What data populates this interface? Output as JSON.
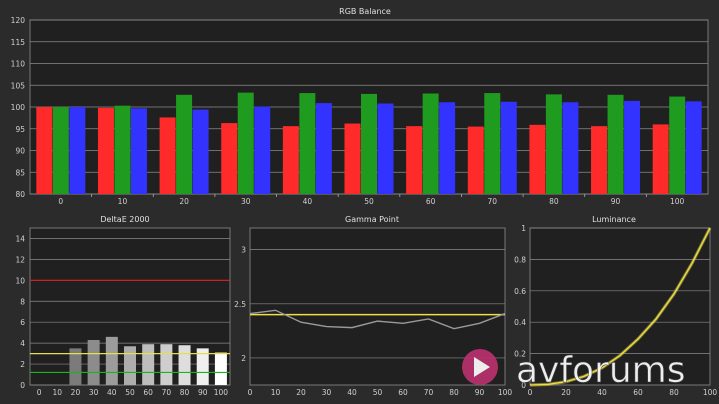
{
  "watermark": {
    "text": "avforums",
    "color": "#c1397a"
  },
  "chart_data": [
    {
      "id": "rgb",
      "type": "bar",
      "title": "RGB Balance",
      "xlabel": "",
      "ylabel": "",
      "ylim": [
        80,
        120
      ],
      "yticks": [
        80,
        85,
        90,
        95,
        100,
        105,
        110,
        115,
        120
      ],
      "categories": [
        "0",
        "10",
        "20",
        "30",
        "40",
        "50",
        "60",
        "70",
        "80",
        "90",
        "100"
      ],
      "series": [
        {
          "color": "#ff2b2b",
          "values": [
            100,
            99.8,
            97.6,
            96.3,
            95.6,
            96.2,
            95.6,
            95.5,
            95.9,
            95.6,
            96.0
          ]
        },
        {
          "color": "#1f9b1f",
          "values": [
            100,
            100.3,
            102.8,
            103.3,
            103.2,
            103.0,
            103.1,
            103.2,
            102.9,
            102.8,
            102.4
          ]
        },
        {
          "color": "#3333ff",
          "values": [
            100,
            99.7,
            99.4,
            100.1,
            100.9,
            100.8,
            101.1,
            101.2,
            101.1,
            101.4,
            101.3
          ]
        }
      ],
      "grid": true
    },
    {
      "id": "deltae",
      "type": "bar",
      "title": "DeltaE 2000",
      "xlabel": "",
      "ylabel": "",
      "ylim": [
        0,
        15
      ],
      "yticks": [
        0,
        2,
        4,
        6,
        8,
        10,
        12,
        14
      ],
      "categories": [
        "0",
        "10",
        "20",
        "30",
        "40",
        "50",
        "60",
        "70",
        "80",
        "90",
        "100"
      ],
      "values": [
        0,
        0,
        3.5,
        4.3,
        4.6,
        3.7,
        3.9,
        3.9,
        3.8,
        3.5,
        3.1
      ],
      "reference_lines": [
        {
          "value": 10,
          "color": "#e02020"
        },
        {
          "value": 3,
          "color": "#e8e040"
        },
        {
          "value": 1.2,
          "color": "#20b020"
        }
      ],
      "grid": true
    },
    {
      "id": "gamma",
      "type": "line",
      "title": "Gamma Point",
      "xlabel": "",
      "ylabel": "",
      "xlim": [
        0,
        100
      ],
      "ylim": [
        1.75,
        3.2
      ],
      "xticks": [
        0,
        10,
        20,
        30,
        40,
        50,
        60,
        70,
        80,
        90,
        100
      ],
      "yticks": [
        2,
        2.5,
        3
      ],
      "target": {
        "value": 2.4,
        "color": "#f0e040"
      },
      "series": [
        {
          "color": "#9a9a9a",
          "x": [
            0,
            10,
            20,
            30,
            40,
            50,
            60,
            70,
            80,
            90,
            100
          ],
          "y": [
            2.41,
            2.44,
            2.33,
            2.29,
            2.28,
            2.34,
            2.32,
            2.36,
            2.27,
            2.32,
            2.41
          ]
        }
      ],
      "grid": true
    },
    {
      "id": "luminance",
      "type": "line",
      "title": "Luminance",
      "xlabel": "",
      "ylabel": "",
      "xlim": [
        0,
        100
      ],
      "ylim": [
        0,
        1
      ],
      "xticks": [
        0,
        20,
        40,
        60,
        80,
        100
      ],
      "yticks": [
        0,
        0.2,
        0.4,
        0.6,
        0.8,
        1
      ],
      "series": [
        {
          "color": "#f0e040",
          "x": [
            0,
            10,
            20,
            30,
            40,
            50,
            60,
            70,
            80,
            90,
            100
          ],
          "y": [
            0,
            0.004,
            0.021,
            0.055,
            0.109,
            0.188,
            0.293,
            0.42,
            0.58,
            0.775,
            1.0
          ]
        }
      ],
      "grid": true
    }
  ]
}
